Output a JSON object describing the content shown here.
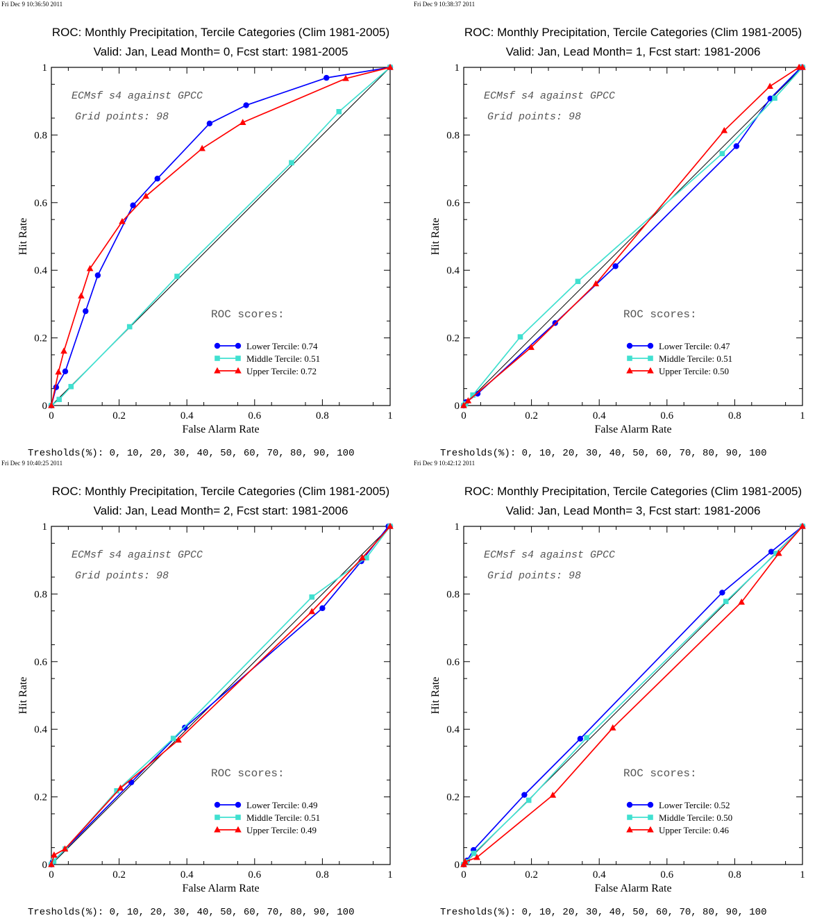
{
  "common": {
    "xlabel": "False Alarm Rate",
    "ylabel": "Hit Rate",
    "annotation_line1": "ECMsf s4 against GPCC",
    "annotation_line2": "Grid points:   98",
    "scores_title": "ROC scores:",
    "thresholds": "Tresholds(%): 0, 10, 20, 30, 40, 50, 60, 70, 80, 90, 100",
    "x_ticks": [
      "0",
      "0.2",
      "0.4",
      "0.6",
      "0.8",
      "1"
    ],
    "y_ticks": [
      "0",
      "0.2",
      "0.4",
      "0.6",
      "0.8",
      "1"
    ],
    "colors": {
      "lower": "#0000ff",
      "middle": "#40e0d0",
      "upper": "#ff0000",
      "diagonal": "#000000"
    }
  },
  "chart_data": [
    {
      "type": "line",
      "timestamp": "Fri Dec  9 10:36:50 2011",
      "title": "ROC: Monthly Precipitation, Tercile Categories (Clim 1981-2005)",
      "subtitle": "Valid: Jan, Lead Month= 0, Fcst start: 1981-2005",
      "xlim": [
        0,
        1
      ],
      "ylim": [
        0,
        1
      ],
      "series": [
        {
          "key": "lower",
          "name": "Lower Tercile: 0.74",
          "marker": "circle",
          "x": [
            0,
            0.014,
            0.041,
            0.101,
            0.137,
            0.241,
            0.313,
            0.467,
            0.575,
            0.812,
            1
          ],
          "y": [
            0,
            0.054,
            0.101,
            0.279,
            0.385,
            0.592,
            0.671,
            0.834,
            0.888,
            0.969,
            1
          ]
        },
        {
          "key": "middle",
          "name": "Middle Tercile: 0.51",
          "marker": "square",
          "x": [
            0,
            0.023,
            0.058,
            0.231,
            0.371,
            0.709,
            0.849,
            1
          ],
          "y": [
            0,
            0.018,
            0.056,
            0.233,
            0.382,
            0.718,
            0.869,
            1
          ]
        },
        {
          "key": "upper",
          "name": "Upper Tercile: 0.72",
          "marker": "triangle",
          "x": [
            0,
            0.021,
            0.037,
            0.088,
            0.114,
            0.209,
            0.279,
            0.445,
            0.565,
            0.869,
            1
          ],
          "y": [
            0,
            0.099,
            0.161,
            0.324,
            0.405,
            0.544,
            0.619,
            0.76,
            0.837,
            0.967,
            1
          ]
        }
      ]
    },
    {
      "type": "line",
      "timestamp": "Fri Dec  9 10:38:37 2011",
      "title": "ROC: Monthly Precipitation, Tercile Categories (Clim 1981-2005)",
      "subtitle": "Valid: Jan, Lead Month= 1, Fcst start: 1981-2006",
      "xlim": [
        0,
        1
      ],
      "ylim": [
        0,
        1
      ],
      "series": [
        {
          "key": "lower",
          "name": "Lower Tercile: 0.47",
          "marker": "circle",
          "x": [
            0,
            0.007,
            0.041,
            0.27,
            0.448,
            0.805,
            0.905,
            0.996,
            1
          ],
          "y": [
            0,
            0.01,
            0.035,
            0.244,
            0.412,
            0.767,
            0.908,
            1,
            1
          ]
        },
        {
          "key": "middle",
          "name": "Middle Tercile: 0.51",
          "marker": "square",
          "x": [
            0,
            0.005,
            0.027,
            0.167,
            0.337,
            0.763,
            0.918,
            1
          ],
          "y": [
            0,
            0.005,
            0.031,
            0.203,
            0.367,
            0.745,
            0.909,
            1
          ]
        },
        {
          "key": "upper",
          "name": "Upper Tercile: 0.50",
          "marker": "triangle",
          "x": [
            0,
            0.013,
            0.199,
            0.39,
            0.769,
            0.904,
            0.99,
            1
          ],
          "y": [
            0,
            0.014,
            0.172,
            0.36,
            0.813,
            0.944,
            1,
            1
          ]
        }
      ]
    },
    {
      "type": "line",
      "timestamp": "Fri Dec  9 10:40:25 2011",
      "title": "ROC: Monthly Precipitation, Tercile Categories (Clim 1981-2005)",
      "subtitle": "Valid: Jan, Lead Month= 2, Fcst start: 1981-2006",
      "xlim": [
        0,
        1
      ],
      "ylim": [
        0,
        1
      ],
      "series": [
        {
          "key": "lower",
          "name": "Lower Tercile: 0.49",
          "marker": "circle",
          "x": [
            0,
            0.004,
            0.236,
            0.394,
            0.8,
            0.915,
            0.995,
            1
          ],
          "y": [
            0,
            0.008,
            0.243,
            0.405,
            0.758,
            0.897,
            1,
            1
          ]
        },
        {
          "key": "middle",
          "name": "Middle Tercile: 0.51",
          "marker": "square",
          "x": [
            0,
            0.007,
            0.041,
            0.193,
            0.36,
            0.769,
            0.93,
            1
          ],
          "y": [
            0,
            0.01,
            0.046,
            0.218,
            0.373,
            0.791,
            0.907,
            1
          ]
        },
        {
          "key": "upper",
          "name": "Upper Tercile: 0.49",
          "marker": "triangle",
          "x": [
            0,
            0.008,
            0.04,
            0.204,
            0.375,
            0.769,
            0.918,
            1
          ],
          "y": [
            0,
            0.028,
            0.046,
            0.226,
            0.368,
            0.748,
            0.907,
            1
          ]
        }
      ]
    },
    {
      "type": "line",
      "timestamp": "Fri Dec  9 10:42:12 2011",
      "title": "ROC: Monthly Precipitation, Tercile Categories (Clim 1981-2005)",
      "subtitle": "Valid: Jan, Lead Month= 3, Fcst start: 1981-2006",
      "xlim": [
        0,
        1
      ],
      "ylim": [
        0,
        1
      ],
      "series": [
        {
          "key": "lower",
          "name": "Lower Tercile: 0.52",
          "marker": "circle",
          "x": [
            0,
            0.01,
            0.029,
            0.179,
            0.344,
            0.763,
            0.908,
            1
          ],
          "y": [
            0,
            0.012,
            0.043,
            0.206,
            0.372,
            0.804,
            0.925,
            1
          ]
        },
        {
          "key": "middle",
          "name": "Middle Tercile: 0.50",
          "marker": "square",
          "x": [
            0,
            0.008,
            0.03,
            0.192,
            0.363,
            0.774,
            0.922,
            1
          ],
          "y": [
            0,
            0.008,
            0.033,
            0.19,
            0.375,
            0.778,
            0.92,
            1
          ]
        },
        {
          "key": "upper",
          "name": "Upper Tercile: 0.46",
          "marker": "triangle",
          "x": [
            0,
            0.004,
            0.039,
            0.263,
            0.44,
            0.82,
            0.93,
            1
          ],
          "y": [
            0,
            0.008,
            0.021,
            0.205,
            0.404,
            0.776,
            0.92,
            1
          ]
        }
      ]
    }
  ]
}
